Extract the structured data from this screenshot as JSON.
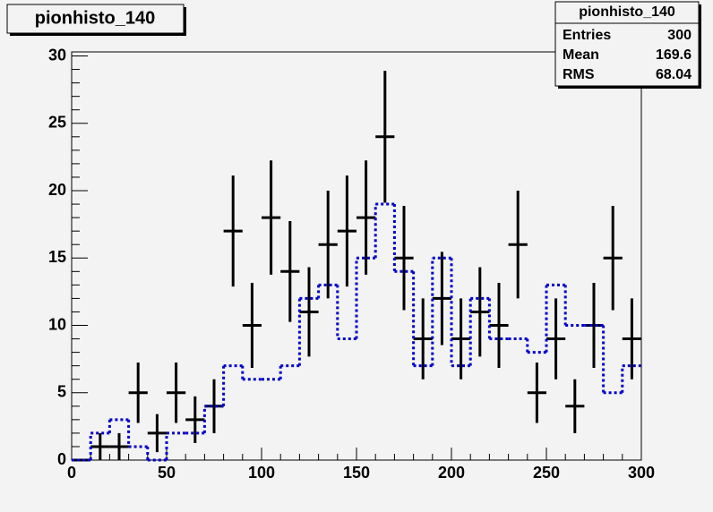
{
  "chart_data": {
    "type": "histogram",
    "title": "pionhisto_140",
    "bins": [
      0,
      10,
      20,
      30,
      40,
      50,
      60,
      70,
      80,
      90,
      100,
      110,
      120,
      130,
      140,
      150,
      160,
      170,
      180,
      190,
      200,
      210,
      220,
      230,
      240,
      250,
      260,
      270,
      280,
      290,
      300
    ],
    "series": [
      {
        "color": "#000000",
        "style": "errors",
        "values": [
          0,
          1,
          1,
          5,
          2,
          5,
          3,
          4,
          17,
          10,
          18,
          14,
          11,
          16,
          17,
          18,
          24,
          15,
          9,
          12,
          9,
          11,
          10,
          16,
          5,
          9,
          4,
          10,
          15,
          9
        ],
        "errors": [
          0,
          1,
          1,
          2.24,
          1.41,
          2.24,
          1.73,
          2,
          4.12,
          3.16,
          4.24,
          3.74,
          3.32,
          4,
          4.12,
          4.24,
          4.9,
          3.87,
          3,
          3.46,
          3,
          3.32,
          3.16,
          4,
          2.24,
          3,
          2,
          3.16,
          3.87,
          3
        ]
      },
      {
        "color": "#0000cc",
        "style": "dotted-step",
        "values": [
          0,
          2,
          3,
          1,
          0,
          2,
          2,
          4,
          7,
          6,
          6,
          7,
          12,
          13,
          9,
          15,
          19,
          14,
          7,
          15,
          7,
          12,
          9,
          9,
          8,
          13,
          10,
          10,
          5,
          7
        ]
      }
    ],
    "xlim": [
      0,
      300
    ],
    "ylim": [
      0,
      30.3
    ],
    "xticks": [
      0,
      50,
      100,
      150,
      200,
      250,
      300
    ],
    "yticks": [
      0,
      5,
      10,
      15,
      20,
      25,
      30
    ],
    "stats": {
      "title": "pionhisto_140",
      "rows": [
        {
          "label": "Entries",
          "value": 300
        },
        {
          "label": "Mean",
          "value": 169.6
        },
        {
          "label": "RMS",
          "value": 68.04
        }
      ]
    }
  }
}
